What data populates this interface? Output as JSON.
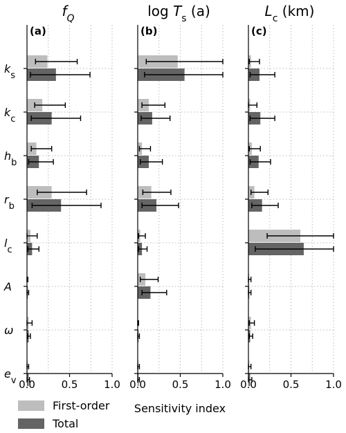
{
  "chart_data": {
    "type": "bar",
    "orientation": "horizontal",
    "parameters": [
      {
        "id": "ks",
        "base": "k",
        "sub": "s"
      },
      {
        "id": "kc",
        "base": "k",
        "sub": "c"
      },
      {
        "id": "hb",
        "base": "h",
        "sub": "b"
      },
      {
        "id": "rb",
        "base": "r",
        "sub": "b"
      },
      {
        "id": "lc",
        "base": "l",
        "sub": "c"
      },
      {
        "id": "A",
        "base": "A",
        "sub": ""
      },
      {
        "id": "omega",
        "base": "ω",
        "sub": ""
      },
      {
        "id": "ev",
        "base": "e",
        "sub": "v"
      }
    ],
    "xlabel": "Sensitivity index",
    "xlim": [
      0,
      1
    ],
    "xticks": [
      "0.0",
      "0.5",
      "1.0"
    ],
    "grid": true,
    "legend": {
      "position": "bottom-left",
      "entries": [
        "First-order",
        "Total"
      ]
    },
    "series_colors": {
      "First-order": "#bdbdbd",
      "Total": "#646464"
    },
    "panels": [
      {
        "letter": "(a)",
        "title": {
          "pre": "f",
          "sub": "Q",
          "post": ""
        },
        "first_order": {
          "values": [
            0.24,
            0.18,
            0.11,
            0.29,
            0.04,
            0.0,
            0.02,
            0.01
          ],
          "err_low": [
            0.1,
            0.09,
            0.05,
            0.12,
            0.0,
            0.0,
            0.0,
            0.0
          ],
          "err_high": [
            0.59,
            0.45,
            0.29,
            0.7,
            0.12,
            0.01,
            0.06,
            0.02
          ]
        },
        "total": {
          "values": [
            0.34,
            0.29,
            0.14,
            0.4,
            0.06,
            0.01,
            0.02,
            0.02
          ],
          "err_low": [
            0.04,
            0.05,
            0.02,
            0.06,
            0.01,
            0.0,
            0.01,
            0.0
          ],
          "err_high": [
            0.74,
            0.63,
            0.31,
            0.87,
            0.14,
            0.02,
            0.04,
            0.03
          ]
        }
      },
      {
        "letter": "(b)",
        "title": {
          "pre": "log T",
          "sub": "s",
          "post": " (a)"
        },
        "first_order": {
          "values": [
            0.47,
            0.13,
            0.05,
            0.16,
            0.03,
            0.09,
            0.0,
            0.01
          ],
          "err_low": [
            0.1,
            0.05,
            0.02,
            0.06,
            0.01,
            0.03,
            0.0,
            0.0
          ],
          "err_high": [
            1.0,
            0.32,
            0.15,
            0.39,
            0.09,
            0.24,
            0.01,
            0.02
          ]
        },
        "total": {
          "values": [
            0.55,
            0.17,
            0.13,
            0.22,
            0.05,
            0.15,
            0.01,
            0.01
          ],
          "err_low": [
            0.08,
            0.04,
            0.03,
            0.05,
            0.01,
            0.05,
            0.0,
            0.0
          ],
          "err_high": [
            1.0,
            0.38,
            0.29,
            0.48,
            0.11,
            0.34,
            0.02,
            0.02
          ]
        }
      },
      {
        "letter": "(c)",
        "title": {
          "pre": "L",
          "sub": "c",
          "post": " (km)"
        },
        "first_order": {
          "values": [
            0.03,
            0.02,
            0.04,
            0.07,
            0.61,
            0.01,
            0.03,
            0.01
          ],
          "err_low": [
            0.01,
            0.0,
            0.01,
            0.03,
            0.22,
            0.0,
            0.01,
            0.0
          ],
          "err_high": [
            0.13,
            0.1,
            0.14,
            0.23,
            1.0,
            0.03,
            0.07,
            0.03
          ]
        },
        "total": {
          "values": [
            0.13,
            0.14,
            0.12,
            0.16,
            0.65,
            0.01,
            0.02,
            0.02
          ],
          "err_low": [
            0.02,
            0.02,
            0.02,
            0.04,
            0.08,
            0.0,
            0.01,
            0.0
          ],
          "err_high": [
            0.31,
            0.31,
            0.26,
            0.35,
            1.0,
            0.03,
            0.05,
            0.04
          ]
        }
      }
    ]
  }
}
